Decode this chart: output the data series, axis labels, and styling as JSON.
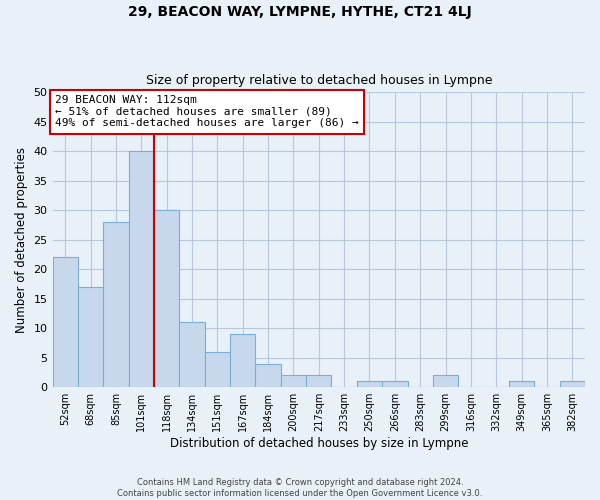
{
  "title": "29, BEACON WAY, LYMPNE, HYTHE, CT21 4LJ",
  "subtitle": "Size of property relative to detached houses in Lympne",
  "xlabel": "Distribution of detached houses by size in Lympne",
  "ylabel": "Number of detached properties",
  "footer1": "Contains HM Land Registry data © Crown copyright and database right 2024.",
  "footer2": "Contains public sector information licensed under the Open Government Licence v3.0.",
  "categories": [
    "52sqm",
    "68sqm",
    "85sqm",
    "101sqm",
    "118sqm",
    "134sqm",
    "151sqm",
    "167sqm",
    "184sqm",
    "200sqm",
    "217sqm",
    "233sqm",
    "250sqm",
    "266sqm",
    "283sqm",
    "299sqm",
    "316sqm",
    "332sqm",
    "349sqm",
    "365sqm",
    "382sqm"
  ],
  "values": [
    22,
    17,
    28,
    40,
    30,
    11,
    6,
    9,
    4,
    2,
    2,
    0,
    1,
    1,
    0,
    2,
    0,
    0,
    1,
    0,
    1
  ],
  "bar_color": "#c8d8ec",
  "bar_edge_color": "#7aafd4",
  "grid_color": "#b8c8dc",
  "background_color": "#e8f0f8",
  "vline_x": 3.5,
  "vline_color": "#cc0000",
  "annotation_line1": "29 BEACON WAY: 112sqm",
  "annotation_line2": "← 51% of detached houses are smaller (89)",
  "annotation_line3": "49% of semi-detached houses are larger (86) →",
  "annotation_box_color": "white",
  "annotation_box_edge": "#cc0000",
  "ylim": [
    0,
    50
  ],
  "yticks": [
    0,
    5,
    10,
    15,
    20,
    25,
    30,
    35,
    40,
    45,
    50
  ]
}
